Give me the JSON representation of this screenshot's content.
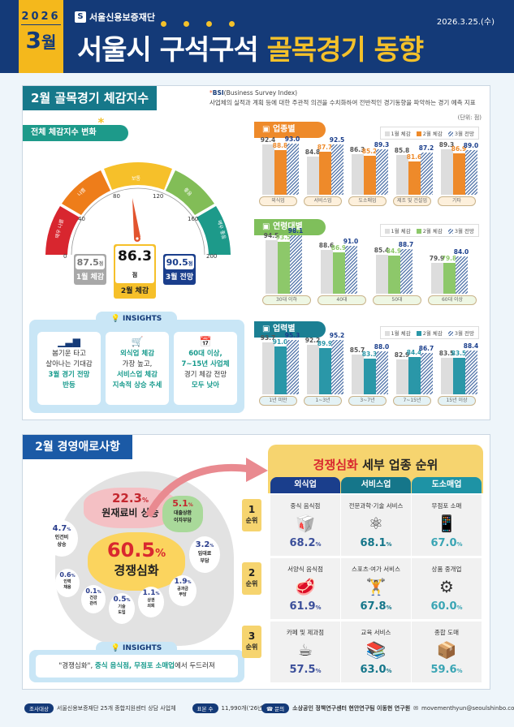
{
  "header": {
    "year": "2026",
    "month_num": "3",
    "month_unit": "월",
    "org": "서울신용보증재단",
    "org_logo": "S",
    "date": "2026.3.25.(수)",
    "title_white": "서울시 구석구석 ",
    "title_yellow": "골목경기 동향"
  },
  "bsi_section": {
    "title": "2월 골목경기 체감지수(BSI",
    "title_star": "*",
    "title_end": ")",
    "def_star": "*",
    "def_name": "BSI",
    "def_en": "(Business Survey Index)",
    "def_text": "사업체의 실적과 계획 등에 대한 주관적 의견을 수치화하여 전반적인 경기동향을 파악하는 경기 예측 지표",
    "unit": "(단위: 점)",
    "gauge_pill": "전체 체감지수 변화",
    "gauge": {
      "segments": [
        "매우 나쁨",
        "나쁨",
        "보통",
        "좋음",
        "매우 좋음"
      ],
      "ticks": [
        "0",
        "40",
        "80",
        "120",
        "160",
        "200"
      ],
      "jan": {
        "value": "87.5",
        "unit": "점",
        "label": "1월 체감"
      },
      "feb": {
        "value": "86.3",
        "unit": "점",
        "label": "2월 체감"
      },
      "mar": {
        "value": "90.5",
        "unit": "점",
        "label": "3월 전망"
      }
    },
    "insights": {
      "tab": "INSIGHTS",
      "cards": [
        {
          "l1": "봄기운 타고",
          "l2": "살아나는 기대감",
          "l3": "3월 경기 전망",
          "l4": "반등"
        },
        {
          "l1": "외식업 체감",
          "l2": "가장 높고,",
          "l3": "서비스업 체감",
          "l4": "지속적 상승 추세"
        },
        {
          "l1": "60대 이상,",
          "l2": "7~15년 사업체",
          "l3": "경기 체감 전망",
          "l4": "모두 낮아"
        }
      ]
    },
    "legend": {
      "jan": "1월 체감",
      "feb": "2월 체감",
      "mar": "3월 전망"
    },
    "industry_pill": "업종별",
    "age_pill": "연령대별",
    "tenure_pill": "업력별"
  },
  "chart_data": [
    {
      "type": "bar",
      "title": "업종별",
      "categories": [
        "외식업",
        "서비스업",
        "도소매업",
        "제조 및 건설업",
        "기타"
      ],
      "series": [
        {
          "name": "1월 체감",
          "values": [
            92.4,
            84.8,
            86.3,
            85.8,
            89.3
          ]
        },
        {
          "name": "2월 체감",
          "values": [
            88.8,
            87.7,
            85.2,
            81.6,
            86.9
          ]
        },
        {
          "name": "3월 전망",
          "values": [
            93.0,
            92.5,
            89.3,
            87.2,
            89.0
          ]
        }
      ],
      "ylabel": "점"
    },
    {
      "type": "bar",
      "title": "연령대별",
      "categories": [
        "30대 이하",
        "40대",
        "50대",
        "60대 이상"
      ],
      "series": [
        {
          "name": "1월 체감",
          "values": [
            94.5,
            88.6,
            85.4,
            79.9
          ]
        },
        {
          "name": "2월 체감",
          "values": [
            93.5,
            86.9,
            84.9,
            79.8
          ]
        },
        {
          "name": "3월 전망",
          "values": [
            98.1,
            91.0,
            88.7,
            84.0
          ]
        }
      ],
      "ylabel": "점"
    },
    {
      "type": "bar",
      "title": "업력별",
      "categories": [
        "1년 미만",
        "1~3년",
        "3~7년",
        "7~15년",
        "15년 이상"
      ],
      "series": [
        {
          "name": "1월 체감",
          "values": [
            93.7,
            92.2,
            85.7,
            82.9,
            83.5
          ]
        },
        {
          "name": "2월 체감",
          "values": [
            91.0,
            89.9,
            83.3,
            84.4,
            83.5
          ]
        },
        {
          "name": "3월 전망",
          "values": [
            95.3,
            95.2,
            88.0,
            86.7,
            88.4
          ]
        }
      ],
      "ylabel": "점"
    },
    {
      "type": "bar",
      "title": "2월 경영애로사항",
      "categories": [
        "경쟁심화",
        "원재료비 상승",
        "대출상환 이자부담",
        "인건비 상승",
        "임대료 부담",
        "공과금 부담",
        "상권 쇠퇴",
        "인력 채용",
        "기술 도입",
        "건강 관리"
      ],
      "values": [
        60.5,
        22.3,
        5.1,
        4.7,
        3.2,
        1.9,
        1.1,
        0.6,
        0.5,
        0.1
      ],
      "ylabel": "%"
    }
  ],
  "hardship": {
    "title": "2월 경영애로사항",
    "main": {
      "pct": "60.5",
      "label": "경쟁심화"
    },
    "raw": {
      "pct": "22.3",
      "label": "원재료비 상승"
    },
    "loan": {
      "pct": "5.1",
      "l1": "대출상환",
      "l2": "이자부담"
    },
    "labor": {
      "pct": "4.7",
      "l1": "인건비",
      "l2": "상승"
    },
    "rent": {
      "pct": "3.2",
      "l1": "임대료",
      "l2": "부담"
    },
    "util": {
      "pct": "1.9",
      "l1": "공과금",
      "l2": "부담"
    },
    "decline": {
      "pct": "1.1",
      "l1": "상권",
      "l2": "쇠퇴"
    },
    "hire": {
      "pct": "0.6",
      "l1": "인력",
      "l2": "채용"
    },
    "tech": {
      "pct": "0.5",
      "l1": "기술",
      "l2": "도입"
    },
    "health": {
      "pct": "0.1",
      "l1": "건강",
      "l2": "관리"
    },
    "pct_sign": "%",
    "insight_tab": "INSIGHTS",
    "insight_q1": "\"경쟁심화\", ",
    "insight_h1": "중식 음식점, 무점포 소매업",
    "insight_q2": "에서 두드러져"
  },
  "ranking": {
    "title_red": "경쟁심화",
    "title_black": " 세부 업종 순위",
    "columns": [
      {
        "label": "외식업",
        "color": "#1a3e8c"
      },
      {
        "label": "서비스업",
        "color": "#15768a"
      },
      {
        "label": "도소매업",
        "color": "#1e93a5"
      }
    ],
    "ranks": [
      {
        "num": "1",
        "unit": "순위"
      },
      {
        "num": "2",
        "unit": "순위"
      },
      {
        "num": "3",
        "unit": "순위"
      }
    ],
    "cells": [
      [
        {
          "name": "중식 음식점",
          "icon": "🥡",
          "pct": "68.2"
        },
        {
          "name": "전문과학·기술 서비스",
          "icon": "⚛",
          "pct": "68.1"
        },
        {
          "name": "무점포 소매",
          "icon": "📱",
          "pct": "67.0"
        }
      ],
      [
        {
          "name": "서양식 음식점",
          "icon": "🥩",
          "pct": "61.9"
        },
        {
          "name": "스포츠·여가 서비스",
          "icon": "🏋",
          "pct": "67.8"
        },
        {
          "name": "상품 중개업",
          "icon": "⚙",
          "pct": "60.0"
        }
      ],
      [
        {
          "name": "카페 및 제과점",
          "icon": "☕",
          "pct": "57.5"
        },
        {
          "name": "교육 서비스",
          "icon": "📚",
          "pct": "63.0"
        },
        {
          "name": "종합 도매",
          "icon": "📦",
          "pct": "59.6"
        }
      ]
    ]
  },
  "footer": {
    "target_tag": "조사대상",
    "target": "서울신용보증재단 25개 종합지원센터 상담 사업체",
    "sample_tag": "표본 수",
    "sample": "11,990개('26년 2월 기준)",
    "contact_tag": "문의",
    "contact": "소상공인 정책연구센터 현안연구팀 이동현 연구원",
    "email": "movementhyun@seoulshinbo.co.kr"
  }
}
